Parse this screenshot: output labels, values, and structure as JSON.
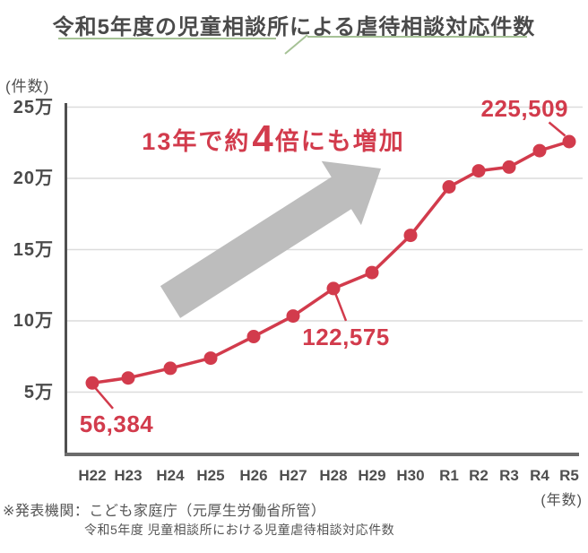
{
  "title": "令和5年度の児童相談所による虐待相談対応件数",
  "annotation": {
    "prefix": "13年で約",
    "big_char": "4",
    "suffix": "倍にも増加"
  },
  "footer": {
    "source_line": "※発表機関：こども家庭庁（元厚生労働省所管）",
    "report_line": "令和5年度 児童相談所における児童虐待相談対応件数"
  },
  "colors": {
    "accent_red": "#D23B4C",
    "title_gray": "#4A4A4A",
    "axis_gray": "#4F4F4F",
    "baseline_gray": "#6B6B6B",
    "grid_gray": "#DCDCDC",
    "arrow_gray": "#BDBDBD",
    "underline_green": "#A6C296",
    "footer_gray": "#555555"
  },
  "chart_data": {
    "type": "line",
    "title": "令和5年度の児童相談所による虐待相談対応件数",
    "x": [
      "H22",
      "H23",
      "H24",
      "H25",
      "H26",
      "H27",
      "H28",
      "H29",
      "H30",
      "R1",
      "R2",
      "R3",
      "R4",
      "R5"
    ],
    "values": [
      56384,
      59919,
      66701,
      73802,
      88931,
      103286,
      122575,
      133778,
      159838,
      193780,
      205044,
      207660,
      219170,
      225509
    ],
    "xlabel": "(年数)",
    "ylabel": "(件数)",
    "y_ticks": [
      "25万",
      "20万",
      "15万",
      "10万",
      "5万"
    ],
    "y_tick_values": [
      250000,
      200000,
      150000,
      100000,
      50000
    ],
    "ylim": [
      6000,
      253000
    ],
    "grid": "horizontal",
    "legend": false,
    "annotation": "13年で約4倍にも増加",
    "callouts": [
      {
        "index": 0,
        "x": "H22",
        "text": "56,384"
      },
      {
        "index": 6,
        "x": "H28",
        "text": "122,575"
      },
      {
        "index": 13,
        "x": "R5",
        "text": "225,509"
      }
    ]
  }
}
